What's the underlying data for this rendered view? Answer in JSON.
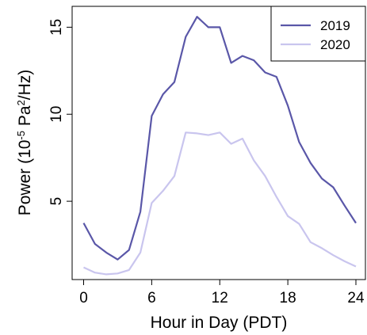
{
  "chart_data": {
    "type": "line",
    "title": "",
    "xlabel": "Hour in Day (PDT)",
    "ylabel": {
      "prefix": "Power (10",
      "exp1": "-5",
      "mid": " Pa",
      "exp2": "2",
      "suffix": "/Hz)"
    },
    "xlim": [
      0,
      24
    ],
    "ylim": [
      0.5,
      16.2
    ],
    "xticks": [
      0,
      6,
      12,
      18,
      24
    ],
    "yticks": [
      5,
      10,
      15
    ],
    "grid": false,
    "legend_position": "top-right",
    "x": [
      0,
      1,
      2,
      3,
      4,
      5,
      6,
      7,
      8,
      9,
      10,
      11,
      12,
      13,
      14,
      15,
      16,
      17,
      18,
      19,
      20,
      21,
      22,
      23,
      24
    ],
    "series": [
      {
        "name": "2019",
        "color": "#5a57a8",
        "values": [
          3.75,
          2.55,
          2.05,
          1.65,
          2.2,
          4.4,
          9.9,
          11.15,
          11.85,
          14.45,
          15.6,
          15.0,
          15.0,
          12.95,
          13.35,
          13.1,
          12.4,
          12.15,
          10.5,
          8.4,
          7.2,
          6.3,
          5.8,
          4.75,
          3.75
        ]
      },
      {
        "name": "2020",
        "color": "#c9c5ee",
        "values": [
          1.2,
          0.9,
          0.8,
          0.85,
          1.05,
          2.05,
          4.9,
          5.6,
          6.45,
          8.95,
          8.9,
          8.8,
          8.95,
          8.3,
          8.6,
          7.35,
          6.45,
          5.25,
          4.15,
          3.7,
          2.65,
          2.3,
          1.9,
          1.55,
          1.25
        ]
      }
    ]
  }
}
